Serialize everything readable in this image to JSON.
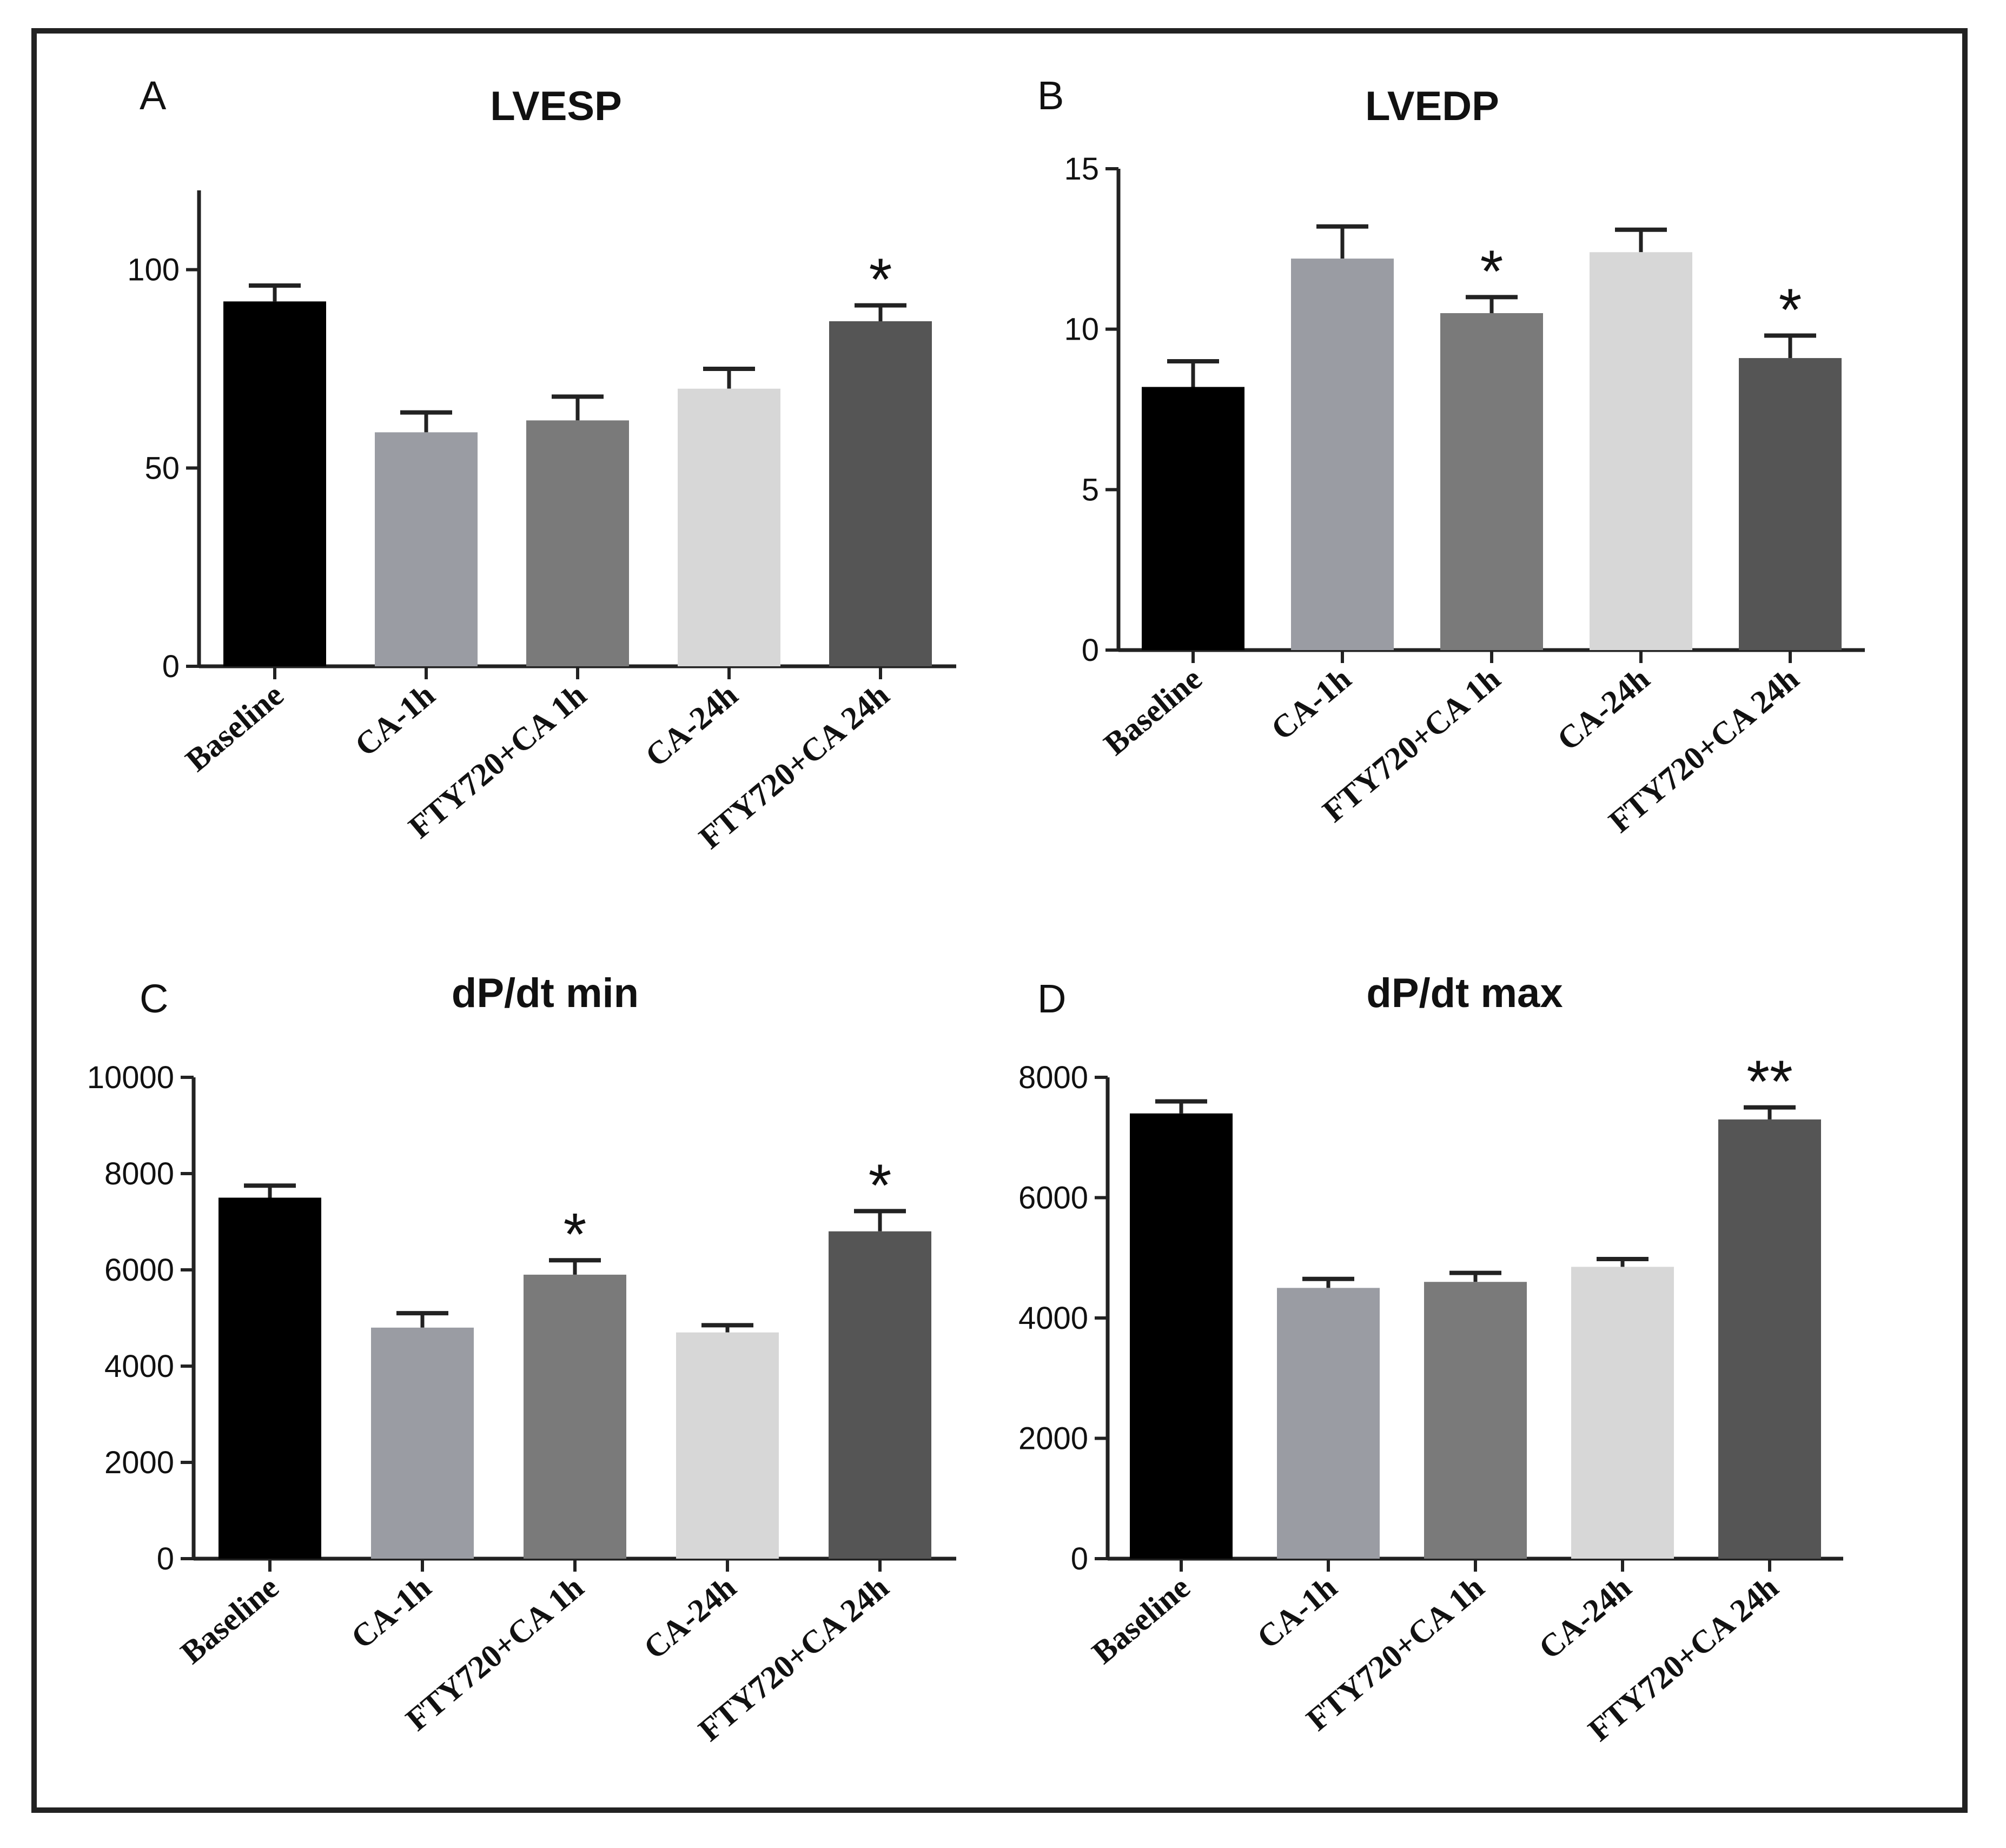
{
  "colors": {
    "background": "#ffffff",
    "axis": "#222222",
    "bar_colors": [
      "#000000",
      "#9a9ca3",
      "#7a7a7a",
      "#d7d7d7",
      "#555555"
    ]
  },
  "chart_data": [
    {
      "panel": "A",
      "type": "bar",
      "title": "LVESP",
      "xlabel": "",
      "ylabel": "",
      "categories": [
        "Baseline",
        "CA-1h",
        "FTY720+CA 1h",
        "CA-24h",
        "FTY720+CA 24h"
      ],
      "values": [
        92,
        59,
        62,
        70,
        87
      ],
      "errors": [
        4,
        5,
        6,
        5,
        4
      ],
      "significance": [
        "",
        "",
        "",
        "",
        "*"
      ],
      "yticks": [
        "0",
        "50",
        "100"
      ],
      "ytick_values": [
        0,
        50,
        100
      ],
      "ylim": [
        0,
        120
      ]
    },
    {
      "panel": "B",
      "type": "bar",
      "title": "LVEDP",
      "xlabel": "",
      "ylabel": "",
      "categories": [
        "Baseline",
        "CA-1h",
        "FTY720+CA 1h",
        "CA-24h",
        "FTY720+CA 24h"
      ],
      "values": [
        8.2,
        12.2,
        10.5,
        12.4,
        9.1
      ],
      "errors": [
        0.8,
        1.0,
        0.5,
        0.7,
        0.7
      ],
      "significance": [
        "",
        "",
        "*",
        "",
        "*"
      ],
      "yticks": [
        "0",
        "5",
        "10",
        "15"
      ],
      "ytick_values": [
        0,
        5,
        10,
        15
      ],
      "ylim": [
        0,
        15
      ]
    },
    {
      "panel": "C",
      "type": "bar",
      "title": "dP/dt min",
      "xlabel": "",
      "ylabel": "",
      "categories": [
        "Baseline",
        "CA-1h",
        "FTY720+CA 1h",
        "CA-24h",
        "FTY720+CA 24h"
      ],
      "values": [
        7500,
        4800,
        5900,
        4700,
        6800
      ],
      "errors": [
        250,
        300,
        300,
        150,
        420
      ],
      "significance": [
        "",
        "",
        "*",
        "",
        "*"
      ],
      "yticks": [
        "0",
        "2000",
        "4000",
        "6000",
        "8000",
        "10000"
      ],
      "ytick_values": [
        0,
        2000,
        4000,
        6000,
        8000,
        10000
      ],
      "ylim": [
        0,
        10000
      ]
    },
    {
      "panel": "D",
      "type": "bar",
      "title": "dP/dt max",
      "xlabel": "",
      "ylabel": "",
      "categories": [
        "Baseline",
        "CA-1h",
        "FTY720+CA 1h",
        "CA-24h",
        "FTY720+CA 24h"
      ],
      "values": [
        7400,
        4500,
        4600,
        4850,
        7300
      ],
      "errors": [
        200,
        150,
        150,
        130,
        200
      ],
      "significance": [
        "",
        "",
        "",
        "",
        "**"
      ],
      "yticks": [
        "0",
        "2000",
        "4000",
        "6000",
        "8000"
      ],
      "ytick_values": [
        0,
        2000,
        4000,
        6000,
        8000
      ],
      "ylim": [
        0,
        8000
      ]
    }
  ]
}
